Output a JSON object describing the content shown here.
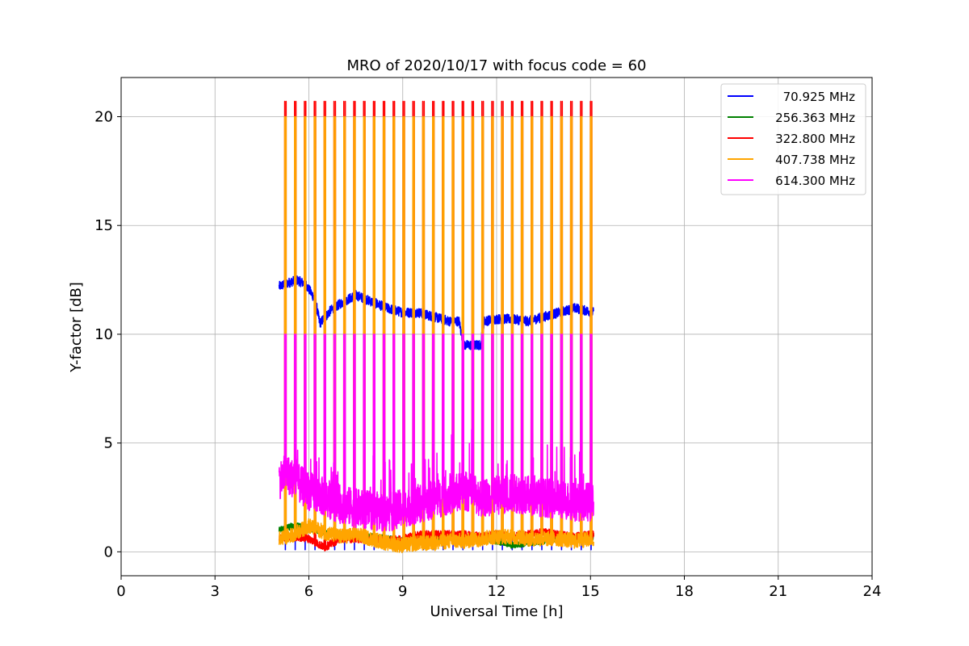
{
  "chart_data": {
    "type": "line",
    "title": "MRO of 2020/10/17 with focus code = 60",
    "xlabel": "Universal Time [h]",
    "ylabel": "Y-factor [dB]",
    "xlim": [
      0,
      24
    ],
    "ylim": [
      -1.1,
      21.8
    ],
    "xticks": [
      0,
      3,
      6,
      9,
      12,
      15,
      18,
      21,
      24
    ],
    "yticks": [
      0,
      5,
      10,
      15,
      20
    ],
    "grid": true,
    "legend_position": "top-right",
    "x_range_of_data": [
      5.05,
      15.1
    ],
    "calibration_spikes": {
      "count": 32,
      "first_x": 5.25,
      "last_x": 15.02,
      "peaks": {
        "322.800 MHz": 20.7,
        "407.738 MHz": 20.0,
        "614.300 MHz": 10.0
      }
    },
    "series": [
      {
        "name": "70.925 MHz",
        "color": "#0000ff",
        "baseline": [
          [
            5.05,
            12.2
          ],
          [
            5.6,
            12.5
          ],
          [
            5.9,
            12.3
          ],
          [
            6.2,
            11.6
          ],
          [
            6.35,
            10.5
          ],
          [
            6.7,
            11.1
          ],
          [
            7.0,
            11.4
          ],
          [
            7.5,
            11.8
          ],
          [
            8.0,
            11.5
          ],
          [
            8.5,
            11.2
          ],
          [
            9.0,
            11.0
          ],
          [
            9.5,
            11.0
          ],
          [
            10.0,
            10.8
          ],
          [
            10.5,
            10.6
          ],
          [
            10.8,
            10.6
          ],
          [
            10.95,
            9.5
          ],
          [
            11.3,
            9.5
          ],
          [
            11.5,
            9.5
          ],
          [
            11.6,
            10.6
          ],
          [
            12.0,
            10.7
          ],
          [
            12.5,
            10.7
          ],
          [
            13.0,
            10.6
          ],
          [
            13.5,
            10.8
          ],
          [
            14.0,
            11.0
          ],
          [
            14.5,
            11.2
          ],
          [
            15.1,
            11.0
          ]
        ],
        "noise": 0.22,
        "dips_to": 0.1
      },
      {
        "name": "256.363 MHz",
        "color": "#008000",
        "baseline": [
          [
            5.05,
            1.0
          ],
          [
            5.5,
            1.2
          ],
          [
            6.0,
            1.1
          ],
          [
            6.5,
            0.9
          ],
          [
            7.0,
            0.8
          ],
          [
            7.5,
            0.7
          ],
          [
            8.0,
            0.7
          ],
          [
            8.5,
            0.6
          ],
          [
            9.0,
            0.5
          ],
          [
            9.5,
            0.6
          ],
          [
            10.0,
            0.6
          ],
          [
            10.5,
            0.7
          ],
          [
            11.0,
            0.6
          ],
          [
            11.5,
            0.6
          ],
          [
            12.0,
            0.5
          ],
          [
            12.5,
            0.3
          ],
          [
            13.0,
            0.4
          ],
          [
            13.5,
            0.5
          ],
          [
            14.0,
            0.6
          ],
          [
            14.5,
            0.6
          ],
          [
            15.1,
            0.7
          ]
        ],
        "noise": 0.15
      },
      {
        "name": "322.800 MHz",
        "color": "#ff0000",
        "baseline": [
          [
            5.05,
            0.6
          ],
          [
            5.5,
            0.7
          ],
          [
            6.0,
            0.6
          ],
          [
            6.5,
            0.2
          ],
          [
            7.0,
            0.6
          ],
          [
            7.5,
            0.6
          ],
          [
            8.0,
            0.6
          ],
          [
            8.5,
            0.5
          ],
          [
            9.0,
            0.6
          ],
          [
            9.5,
            0.8
          ],
          [
            10.0,
            0.8
          ],
          [
            10.5,
            0.8
          ],
          [
            11.0,
            0.8
          ],
          [
            11.5,
            0.7
          ],
          [
            12.0,
            0.8
          ],
          [
            12.5,
            0.7
          ],
          [
            13.0,
            0.8
          ],
          [
            13.5,
            0.9
          ],
          [
            14.0,
            0.8
          ],
          [
            14.5,
            0.7
          ],
          [
            15.1,
            0.8
          ]
        ],
        "noise": 0.18
      },
      {
        "name": "407.738 MHz",
        "color": "#ffa500",
        "baseline": [
          [
            5.05,
            0.6
          ],
          [
            5.5,
            0.8
          ],
          [
            6.0,
            1.2
          ],
          [
            6.5,
            0.9
          ],
          [
            7.0,
            0.7
          ],
          [
            7.5,
            0.8
          ],
          [
            8.0,
            0.6
          ],
          [
            8.5,
            0.4
          ],
          [
            9.0,
            0.3
          ],
          [
            9.5,
            0.4
          ],
          [
            10.0,
            0.4
          ],
          [
            10.5,
            0.5
          ],
          [
            11.0,
            0.5
          ],
          [
            11.5,
            0.6
          ],
          [
            12.0,
            0.7
          ],
          [
            12.5,
            0.7
          ],
          [
            13.0,
            0.6
          ],
          [
            13.5,
            0.6
          ],
          [
            14.0,
            0.6
          ],
          [
            14.5,
            0.5
          ],
          [
            15.1,
            0.6
          ]
        ],
        "noise": 0.35
      },
      {
        "name": "614.300 MHz",
        "color": "#ff00ff",
        "baseline": [
          [
            5.05,
            3.3
          ],
          [
            5.3,
            3.6
          ],
          [
            5.6,
            3.2
          ],
          [
            6.0,
            2.8
          ],
          [
            6.5,
            2.5
          ],
          [
            7.0,
            2.2
          ],
          [
            7.5,
            2.0
          ],
          [
            8.0,
            1.9
          ],
          [
            8.5,
            1.8
          ],
          [
            9.0,
            2.0
          ],
          [
            9.5,
            2.2
          ],
          [
            10.0,
            2.4
          ],
          [
            10.5,
            2.6
          ],
          [
            11.0,
            2.8
          ],
          [
            11.5,
            2.5
          ],
          [
            12.0,
            2.6
          ],
          [
            12.5,
            2.7
          ],
          [
            13.0,
            2.6
          ],
          [
            13.5,
            2.5
          ],
          [
            14.0,
            2.4
          ],
          [
            14.5,
            2.3
          ],
          [
            15.1,
            2.3
          ]
        ],
        "noise": 0.9
      }
    ]
  }
}
